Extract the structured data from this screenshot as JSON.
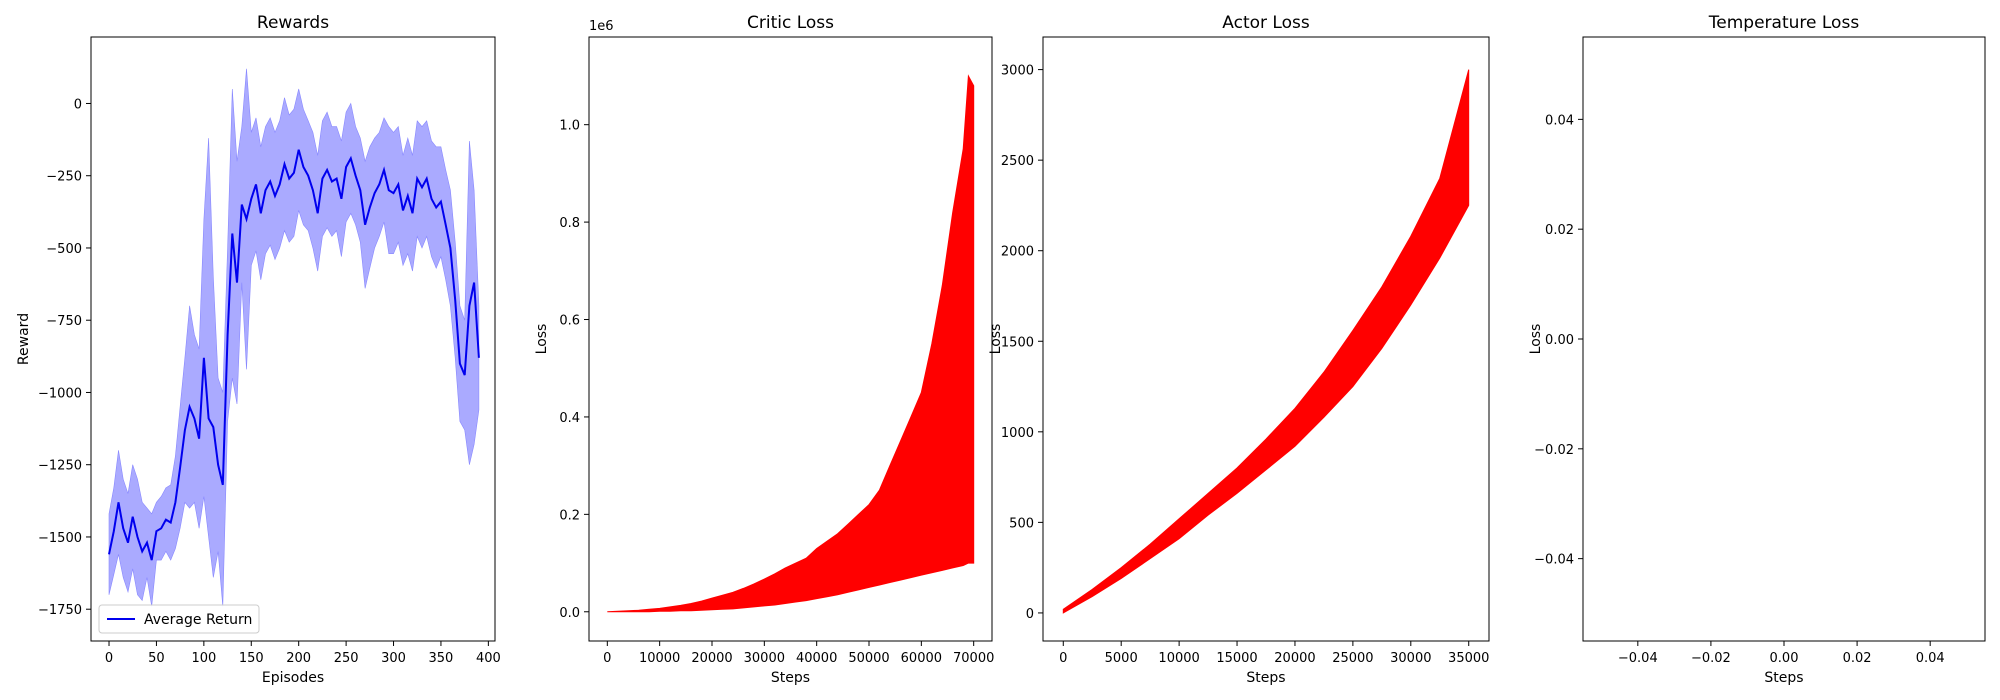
{
  "chart_data": [
    {
      "type": "line",
      "title": "Rewards",
      "xlabel": "Episodes",
      "ylabel": "Reward",
      "xlim": [
        -19,
        407
      ],
      "ylim": [
        -1860,
        230
      ],
      "xticks": [
        0,
        50,
        100,
        150,
        200,
        250,
        300,
        350,
        400
      ],
      "yticks": [
        -1750,
        -1500,
        -1250,
        -1000,
        -750,
        -500,
        -250,
        0
      ],
      "legend": {
        "position": "lower-left",
        "entries": [
          "Average Return"
        ]
      },
      "grid": false,
      "series": [
        {
          "name": "Average Return",
          "color": "#0000ee",
          "fill_color": "#aaaaff",
          "x": [
            0,
            5,
            10,
            15,
            20,
            25,
            30,
            35,
            40,
            45,
            50,
            55,
            60,
            65,
            70,
            75,
            80,
            85,
            90,
            95,
            100,
            105,
            110,
            115,
            120,
            125,
            130,
            135,
            140,
            145,
            150,
            155,
            160,
            165,
            170,
            175,
            180,
            185,
            190,
            195,
            200,
            205,
            210,
            215,
            220,
            225,
            230,
            235,
            240,
            245,
            250,
            255,
            260,
            265,
            270,
            275,
            280,
            285,
            290,
            295,
            300,
            305,
            310,
            315,
            320,
            325,
            330,
            335,
            340,
            345,
            350,
            355,
            360,
            365,
            370,
            375,
            380,
            385,
            390
          ],
          "mean": [
            -1560,
            -1480,
            -1380,
            -1470,
            -1520,
            -1430,
            -1500,
            -1550,
            -1520,
            -1580,
            -1480,
            -1470,
            -1440,
            -1450,
            -1380,
            -1260,
            -1130,
            -1050,
            -1090,
            -1160,
            -880,
            -1090,
            -1120,
            -1250,
            -1320,
            -800,
            -450,
            -620,
            -350,
            -400,
            -330,
            -280,
            -380,
            -300,
            -270,
            -320,
            -280,
            -210,
            -260,
            -240,
            -160,
            -220,
            -250,
            -300,
            -380,
            -260,
            -230,
            -270,
            -260,
            -330,
            -220,
            -190,
            -250,
            -300,
            -420,
            -360,
            -310,
            -280,
            -230,
            -300,
            -310,
            -280,
            -370,
            -320,
            -380,
            -260,
            -290,
            -260,
            -330,
            -360,
            -340,
            -420,
            -500,
            -680,
            -900,
            -940,
            -700,
            -620,
            -880
          ],
          "upper": [
            -1420,
            -1330,
            -1200,
            -1300,
            -1350,
            -1250,
            -1300,
            -1380,
            -1400,
            -1420,
            -1380,
            -1360,
            -1330,
            -1320,
            -1220,
            -1050,
            -880,
            -700,
            -800,
            -850,
            -400,
            -120,
            -600,
            -950,
            -1000,
            -500,
            50,
            -200,
            -80,
            120,
            -100,
            -50,
            -150,
            -80,
            -50,
            -100,
            -60,
            20,
            -40,
            -20,
            50,
            -20,
            -60,
            -100,
            -180,
            -60,
            -30,
            -80,
            -80,
            -130,
            -30,
            0,
            -80,
            -120,
            -200,
            -150,
            -120,
            -100,
            -50,
            -80,
            -100,
            -80,
            -180,
            -120,
            -180,
            -60,
            -80,
            -60,
            -130,
            -150,
            -150,
            -230,
            -300,
            -480,
            -700,
            -750,
            -130,
            -300,
            -700
          ],
          "lower": [
            -1700,
            -1630,
            -1560,
            -1640,
            -1690,
            -1610,
            -1700,
            -1720,
            -1640,
            -1740,
            -1580,
            -1580,
            -1550,
            -1580,
            -1540,
            -1470,
            -1380,
            -1400,
            -1380,
            -1470,
            -1360,
            -1500,
            -1640,
            -1550,
            -1740,
            -1100,
            -950,
            -1040,
            -620,
            -920,
            -560,
            -510,
            -610,
            -520,
            -490,
            -540,
            -500,
            -440,
            -480,
            -460,
            -370,
            -420,
            -440,
            -500,
            -580,
            -460,
            -430,
            -460,
            -440,
            -530,
            -410,
            -380,
            -420,
            -480,
            -640,
            -570,
            -500,
            -460,
            -410,
            -520,
            -520,
            -480,
            -560,
            -520,
            -580,
            -460,
            -500,
            -460,
            -530,
            -570,
            -530,
            -610,
            -700,
            -880,
            -1100,
            -1130,
            -1250,
            -1180,
            -1060
          ]
        }
      ]
    },
    {
      "type": "line",
      "title": "Critic Loss",
      "xlabel": "Steps",
      "ylabel": "Loss",
      "offset_text": "1e6",
      "xlim": [
        -3500,
        73500
      ],
      "ylim": [
        -0.06,
        1.18
      ],
      "xticks": [
        0,
        10000,
        20000,
        30000,
        40000,
        50000,
        60000,
        70000
      ],
      "yticks": [
        0.0,
        0.2,
        0.4,
        0.6,
        0.8,
        1.0
      ],
      "grid": false,
      "series": [
        {
          "color": "#ff0000",
          "x": [
            0,
            2000,
            4000,
            6000,
            8000,
            10000,
            12000,
            14000,
            16000,
            18000,
            20000,
            22000,
            24000,
            26000,
            28000,
            30000,
            32000,
            34000,
            36000,
            38000,
            40000,
            42000,
            44000,
            46000,
            48000,
            50000,
            52000,
            54000,
            56000,
            58000,
            60000,
            62000,
            64000,
            66000,
            68000,
            69000,
            70000
          ],
          "upper": [
            0.0,
            0.001,
            0.002,
            0.003,
            0.005,
            0.007,
            0.01,
            0.013,
            0.017,
            0.022,
            0.028,
            0.034,
            0.04,
            0.048,
            0.057,
            0.067,
            0.078,
            0.09,
            0.1,
            0.11,
            0.13,
            0.145,
            0.16,
            0.18,
            0.2,
            0.22,
            0.25,
            0.3,
            0.35,
            0.4,
            0.45,
            0.55,
            0.67,
            0.82,
            0.95,
            1.1,
            1.08
          ],
          "lower": [
            0.0,
            0.0,
            0.0,
            0.0,
            0.0,
            0.001,
            0.001,
            0.002,
            0.002,
            0.003,
            0.004,
            0.005,
            0.006,
            0.008,
            0.01,
            0.012,
            0.014,
            0.017,
            0.02,
            0.023,
            0.027,
            0.031,
            0.035,
            0.04,
            0.045,
            0.05,
            0.055,
            0.06,
            0.065,
            0.07,
            0.075,
            0.08,
            0.085,
            0.09,
            0.095,
            0.1,
            0.1
          ]
        }
      ]
    },
    {
      "type": "line",
      "title": "Actor Loss",
      "xlabel": "Steps",
      "ylabel": "Loss",
      "xlim": [
        -1750,
        36750
      ],
      "ylim": [
        -155,
        3180
      ],
      "xticks": [
        0,
        5000,
        10000,
        15000,
        20000,
        25000,
        30000,
        35000
      ],
      "yticks": [
        0,
        500,
        1000,
        1500,
        2000,
        2500,
        3000
      ],
      "grid": false,
      "series": [
        {
          "color": "#ff0000",
          "x": [
            0,
            2500,
            5000,
            7500,
            10000,
            12500,
            15000,
            17500,
            20000,
            22500,
            25000,
            27500,
            30000,
            32500,
            35000
          ],
          "upper": [
            20,
            130,
            250,
            380,
            520,
            660,
            800,
            960,
            1130,
            1330,
            1560,
            1800,
            2080,
            2400,
            3000
          ],
          "lower": [
            0,
            90,
            190,
            300,
            410,
            540,
            660,
            790,
            920,
            1080,
            1250,
            1460,
            1700,
            1960,
            2250
          ]
        }
      ]
    },
    {
      "type": "line",
      "title": "Temperature Loss",
      "xlabel": "Steps",
      "ylabel": "Loss",
      "xlim": [
        -0.055,
        0.055
      ],
      "ylim": [
        -0.055,
        0.055
      ],
      "xticks": [
        -0.04,
        -0.02,
        0.0,
        0.02,
        0.04
      ],
      "yticks": [
        -0.04,
        -0.02,
        0.0,
        0.02,
        0.04
      ],
      "grid": false,
      "series": []
    }
  ]
}
